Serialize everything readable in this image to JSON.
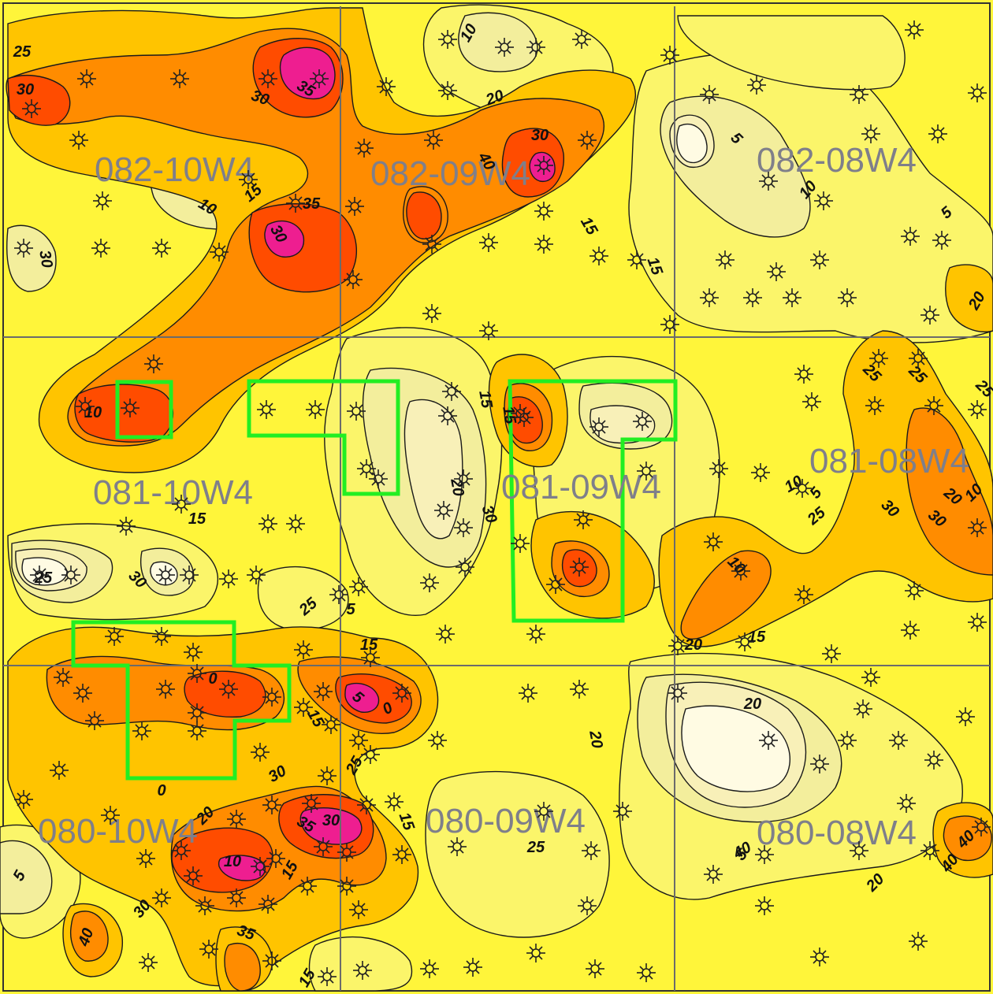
{
  "map": {
    "colors": {
      "c0": "#fffbe3",
      "c5": "#f8f0b8",
      "c10": "#f3ee9c",
      "c15": "#fbf56a",
      "c20": "#fff53a",
      "c25": "#ffc400",
      "c30": "#ff8c00",
      "c35": "#ff4c00",
      "c40": "#ee1e90",
      "grid": "#6b6b6b",
      "highlight_box": "#22ee22"
    },
    "townships": [
      {
        "label": "082-10W4"
      },
      {
        "label": "082-09W4"
      },
      {
        "label": "082-08W4"
      },
      {
        "label": "081-10W4"
      },
      {
        "label": "081-09W4"
      },
      {
        "label": "081-08W4"
      },
      {
        "label": "080-10W4"
      },
      {
        "label": "080-09W4"
      },
      {
        "label": "080-08W4"
      }
    ],
    "contour_labels": [
      "25",
      "30",
      "35",
      "30",
      "20",
      "10",
      "5",
      "30",
      "40",
      "10",
      "15",
      "30",
      "35",
      "10",
      "30",
      "15",
      "15",
      "5",
      "10",
      "15",
      "10",
      "20",
      "30",
      "5",
      "10",
      "20",
      "10",
      "15",
      "20",
      "25",
      "30",
      "25",
      "5",
      "15",
      "0",
      "5",
      "0",
      "15",
      "20",
      "25",
      "30",
      "35",
      "30",
      "10",
      "15",
      "15",
      "30",
      "35",
      "40",
      "40",
      "25",
      "20",
      "40",
      "25",
      "25",
      "30",
      "5",
      "15",
      "0",
      "20",
      "40",
      "20",
      "15",
      "5",
      "25",
      "30",
      "20",
      "40",
      "15",
      "25"
    ],
    "well_symbol": "oil-well-icon"
  }
}
